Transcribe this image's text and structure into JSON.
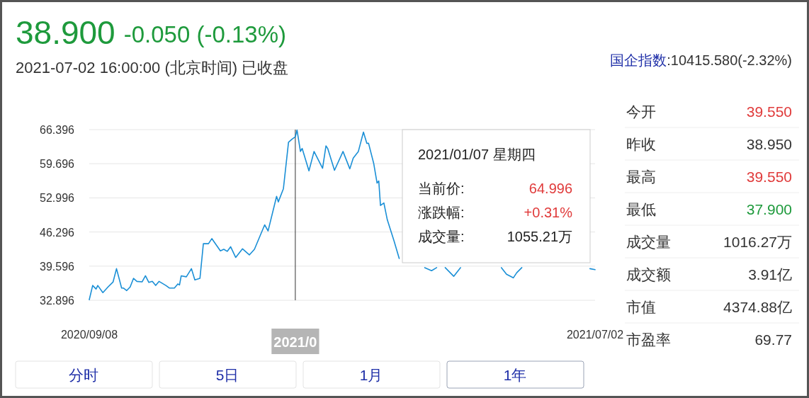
{
  "chart_data": [
    {
      "type": "line",
      "title": "38.900",
      "subtitle": "-0.050 (-0.13%)",
      "annotations": [
        "2021-07-02 16:00:00 (北京时间) 已收盘",
        "2021/01/07 星期四",
        "当前价:",
        "64.996",
        "涨跌幅:",
        "+0.31%",
        "成交量:",
        "1055.21万"
      ],
      "series": [
        {
          "color": "#1a8fd6",
          "x": [
            "2020-09-08",
            "2020-09-10",
            "2020-09-12",
            "2020-09-13",
            "2020-09-16",
            "2020-09-19",
            "2020-09-22",
            "2020-09-24",
            "2020-09-27",
            "2020-09-28",
            "2020-09-30",
            "2020-10-02",
            "2020-10-04",
            "2020-10-06",
            "2020-10-09",
            "2020-10-11",
            "2020-10-13",
            "2020-10-15",
            "2020-10-17",
            "2020-10-19",
            "2020-10-23",
            "2020-10-25",
            "2020-10-28",
            "2020-10-30",
            "2020-10-31",
            "2020-11-01",
            "2020-11-04",
            "2020-11-07",
            "2020-11-09",
            "2020-11-12",
            "2020-11-14",
            "2020-11-17",
            "2020-11-19",
            "2020-11-24",
            "2020-11-26",
            "2020-11-28",
            "2020-11-30",
            "2020-12-03",
            "2020-12-07",
            "2020-12-11",
            "2020-12-14",
            "2020-12-20",
            "2020-12-22",
            "2020-12-27",
            "2020-12-28",
            "2020-12-31",
            "2021-01-03",
            "2021-01-05",
            "2021-01-07",
            "2021-01-08",
            "2021-01-10",
            "2021-01-11",
            "2021-01-15",
            "2021-01-18",
            "2021-01-23",
            "2021-01-25",
            "2021-01-26",
            "2021-01-30",
            "2021-02-04",
            "2021-02-08",
            "2021-02-10",
            "2021-02-13",
            "2021-02-16",
            "2021-02-18",
            "2021-02-19",
            "2021-02-22",
            "2021-02-24",
            "2021-02-25",
            "2021-02-26",
            "2021-02-28",
            "2021-03-02",
            "2021-03-06",
            "2021-03-09"
          ],
          "values": [
            33.0,
            35.8,
            35.1,
            35.8,
            34.4,
            35.5,
            36.5,
            39.1,
            35.3,
            35.3,
            34.8,
            35.5,
            37.2,
            36.6,
            36.5,
            37.7,
            36.4,
            36.6,
            35.8,
            36.6,
            35.8,
            35.3,
            35.3,
            36.1,
            35.9,
            37.7,
            37.5,
            39.1,
            36.9,
            37.2,
            44.0,
            44.0,
            45.0,
            42.6,
            42.9,
            42.5,
            43.4,
            41.3,
            43.0,
            41.8,
            42.9,
            47.7,
            46.5,
            53.3,
            52.2,
            54.8,
            63.9,
            64.5,
            65.0,
            66.3,
            62.1,
            62.7,
            58.3,
            62.1,
            58.8,
            63.2,
            62.7,
            58.4,
            62.1,
            58.7,
            60.8,
            62.1,
            65.9,
            63.7,
            63.7,
            59.8,
            55.9,
            56.3,
            51.5,
            52.0,
            48.7,
            44.5,
            41.1
          ]
        },
        {
          "color": "#1a8fd6",
          "x": [
            "2021-03-24",
            "2021-03-28",
            "2021-03-31"
          ],
          "values": [
            39.3,
            38.7,
            39.3
          ]
        },
        {
          "color": "#1a8fd6",
          "x": [
            "2021-04-05",
            "2021-04-10",
            "2021-04-14"
          ],
          "values": [
            39.3,
            37.6,
            39.3
          ]
        },
        {
          "color": "#1a8fd6",
          "x": [
            "2021-05-08",
            "2021-05-11",
            "2021-05-15",
            "2021-05-17",
            "2021-05-20"
          ],
          "values": [
            39.3,
            38.0,
            37.3,
            38.3,
            39.3
          ]
        },
        {
          "color": "#1a8fd6",
          "x": [
            "2021-06-29",
            "2021-07-02"
          ],
          "values": [
            39.1,
            38.9
          ]
        }
      ],
      "xlim": [
        "2020-09-08",
        "2021-07-02"
      ],
      "xticks": [
        {
          "value": "2020-09-08",
          "label": "2020/09/08"
        },
        {
          "value": "2021-07-02",
          "label": "2021/07/02"
        }
      ],
      "ylim": [
        32.896,
        66.396
      ],
      "yticks": [
        32.896,
        39.596,
        46.296,
        52.996,
        59.696,
        66.396
      ],
      "grid": "y",
      "line_style": "solid",
      "ref_lines": [
        {
          "axis": "x",
          "value": "2021-01-07",
          "label": "2021/0",
          "color": "#333333"
        }
      ]
    },
    {
      "type": "other",
      "annotations": [
        "国企指数",
        ":10415.580(-2.32%)",
        "今开",
        "39.550",
        "昨收",
        "38.950",
        "最高",
        "39.550",
        "最低",
        "37.900",
        "成交量",
        "1016.27万",
        "成交额",
        "3.91亿",
        "市值",
        "4374.88亿",
        "市盈率",
        "69.77",
        "分时",
        "5日",
        "1月",
        "1年"
      ]
    }
  ]
}
